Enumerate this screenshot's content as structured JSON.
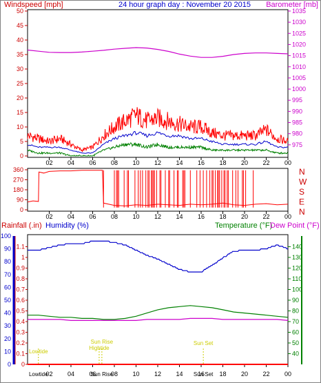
{
  "header": {
    "left_title": "Windspeed [mph]",
    "center_title": "24 hour graph day : November 20 2015",
    "right_title": "Barometer [mb]"
  },
  "colors": {
    "wind": "#ff0000",
    "wind_avg": "#0000cc",
    "wind_low": "#008000",
    "baro": "#cc00cc",
    "dir": "#ff0000",
    "humidity": "#0000cc",
    "temperature": "#008000",
    "dew": "#cc00cc",
    "rain": "#ff0000",
    "tide": "#cccc00",
    "humidity_label": "#0000cc",
    "temperature_label": "#008000",
    "dew_label": "#cc00cc",
    "rain_label": "#cc0000"
  },
  "chart_data": [
    {
      "type": "line",
      "title": "24 hour graph day : November 20 2015",
      "ylabel": "Windspeed [mph]",
      "y2label": "Barometer [mb]",
      "ylim": [
        0,
        50
      ],
      "y2lim": [
        970,
        1035
      ],
      "xlim": [
        0,
        24
      ],
      "x_tick_labels": [
        "02",
        "04",
        "06",
        "08",
        "10",
        "12",
        "14",
        "16",
        "18",
        "20",
        "22",
        "00"
      ],
      "y_ticks": [
        0,
        5,
        10,
        15,
        20,
        25,
        30,
        35,
        40,
        45,
        50
      ],
      "y2_ticks": [
        975,
        980,
        985,
        990,
        995,
        1000,
        1005,
        1010,
        1015,
        1020,
        1025,
        1030,
        1035
      ],
      "series": [
        {
          "key": "barometer",
          "axis": "right",
          "x": [
            0,
            1,
            2,
            3,
            4,
            5,
            6,
            7,
            8,
            9,
            10,
            11,
            12,
            13,
            14,
            15,
            16,
            17,
            18,
            19,
            20,
            21,
            22,
            23,
            24
          ],
          "y": [
            1017.5,
            1017.0,
            1016.5,
            1016.4,
            1016.4,
            1016.6,
            1017.0,
            1017.4,
            1017.9,
            1018.3,
            1018.6,
            1018.4,
            1017.8,
            1016.9,
            1015.7,
            1014.8,
            1014.2,
            1014.2,
            1014.7,
            1015.5,
            1016.0,
            1016.2,
            1016.2,
            1016.0,
            1015.8
          ]
        },
        {
          "key": "wind_max",
          "axis": "left",
          "x": [
            0,
            1,
            2,
            3,
            4,
            5,
            6,
            7,
            8,
            9,
            10,
            11,
            12,
            13,
            14,
            15,
            16,
            17,
            18,
            19,
            20,
            21,
            22,
            23,
            24
          ],
          "y": [
            7,
            6,
            5,
            6,
            4,
            2,
            3,
            7,
            10,
            12,
            14,
            12,
            13,
            12,
            11,
            10,
            10,
            8,
            7,
            7,
            7,
            7,
            9,
            6,
            5
          ]
        },
        {
          "key": "wind_avg",
          "axis": "left",
          "x": [
            0,
            1,
            2,
            3,
            4,
            5,
            6,
            7,
            8,
            9,
            10,
            11,
            12,
            13,
            14,
            15,
            16,
            17,
            18,
            19,
            20,
            21,
            22,
            23,
            24
          ],
          "y": [
            4,
            3,
            3,
            3,
            2,
            1,
            1,
            4,
            6,
            7,
            8,
            7,
            8,
            7,
            7,
            6,
            6,
            5,
            4,
            4,
            4,
            4,
            5,
            3,
            3
          ]
        },
        {
          "key": "wind_low",
          "axis": "left",
          "x": [
            0,
            1,
            2,
            3,
            4,
            5,
            6,
            7,
            8,
            9,
            10,
            11,
            12,
            13,
            14,
            15,
            16,
            17,
            18,
            19,
            20,
            21,
            22,
            23,
            24
          ],
          "y": [
            2,
            1,
            1,
            1,
            0,
            0,
            0,
            2,
            3,
            4,
            4,
            3,
            4,
            3,
            3,
            3,
            3,
            2,
            2,
            2,
            2,
            2,
            2,
            1,
            1
          ]
        }
      ]
    },
    {
      "type": "line",
      "ylim": [
        0,
        360
      ],
      "y_ticks": [
        0,
        90,
        180,
        270,
        360
      ],
      "compass_labels": [
        "N",
        "W",
        "S",
        "E",
        "N"
      ],
      "xlim": [
        0,
        24
      ],
      "x_tick_labels": [
        "02",
        "04",
        "06",
        "08",
        "10",
        "12",
        "14",
        "16",
        "18",
        "20",
        "22",
        "00"
      ],
      "series": [
        {
          "key": "wind_direction",
          "x": [
            0,
            0.5,
            1.0,
            1.05,
            1.5,
            2.0,
            3.0,
            4.0,
            5.0,
            6.0,
            6.9,
            7.0,
            8.0,
            9.0,
            10.0,
            11.0,
            12.0,
            13.0,
            14.0,
            15.0,
            16.0,
            17.0,
            18.0,
            19.0,
            20.0,
            21.0,
            22.0,
            23.0,
            24.0
          ],
          "y": [
            70,
            80,
            75,
            340,
            330,
            345,
            350,
            350,
            355,
            355,
            355,
            60,
            40,
            35,
            45,
            40,
            50,
            45,
            40,
            50,
            45,
            50,
            60,
            45,
            40,
            50,
            55,
            45,
            50
          ]
        }
      ]
    },
    {
      "type": "line",
      "ylabel": "Rainfall (.in)",
      "ylabel2": "Humidity (%)",
      "y2label": "Temperature (°F)",
      "y2label2": "Dew Point (°F)",
      "humidity_ylim": [
        0,
        100
      ],
      "rain_ylim": [
        0,
        1.2
      ],
      "temp_ylim": [
        30,
        150
      ],
      "humidity_ticks": [
        0,
        10,
        20,
        30,
        40,
        50,
        60,
        70,
        80,
        90,
        100
      ],
      "rain_ticks": [
        0,
        0.1,
        0.2,
        0.3,
        0.4,
        0.5,
        0.6,
        0.7,
        0.8,
        0.9,
        1,
        1.1
      ],
      "rain_tick_labels": [
        "0",
        "0.1",
        "0.2",
        "0.3",
        "0.4",
        "0.5",
        "0.6",
        "0.7",
        "0.8",
        "0.9",
        "1",
        "1.1"
      ],
      "temp_ticks": [
        40,
        50,
        60,
        70,
        80,
        90,
        100,
        110,
        120,
        130,
        140
      ],
      "xlim": [
        0,
        24
      ],
      "x_tick_labels": [
        "02",
        "04",
        "06",
        "08",
        "10",
        "12",
        "14",
        "16",
        "18",
        "20",
        "22",
        "00"
      ],
      "events": [
        {
          "label": "Lowtide",
          "x": 1.0
        },
        {
          "label": "Sun Rise",
          "x": 6.85
        },
        {
          "label": "Hightide",
          "x": 6.6
        },
        {
          "label": "Sun Set",
          "x": 16.2
        }
      ],
      "bottom_labels": [
        "Lowtide",
        "Sun Rise",
        "Sun Set"
      ],
      "series": [
        {
          "key": "humidity",
          "x": [
            0,
            1,
            2,
            3,
            4,
            5,
            6,
            7,
            8,
            9,
            10,
            11,
            12,
            13,
            14,
            15,
            16,
            17,
            18,
            19,
            20,
            21,
            22,
            23,
            24
          ],
          "y": [
            89,
            89,
            91,
            93,
            94,
            94,
            96,
            96,
            95,
            93,
            89,
            85,
            82,
            78,
            74,
            72,
            72,
            77,
            83,
            88,
            89,
            89,
            90,
            93,
            90
          ]
        },
        {
          "key": "temperature",
          "x": [
            0,
            1,
            2,
            3,
            4,
            5,
            6,
            7,
            8,
            9,
            10,
            11,
            12,
            13,
            14,
            15,
            16,
            17,
            18,
            19,
            20,
            21,
            22,
            23,
            24
          ],
          "y": [
            76,
            76,
            75,
            74,
            74,
            73,
            73,
            72,
            72,
            73,
            75,
            78,
            81,
            83,
            84,
            85,
            84,
            83,
            81,
            79,
            78,
            77,
            76,
            75,
            74
          ]
        },
        {
          "key": "dew_point",
          "x": [
            0,
            1,
            2,
            3,
            4,
            5,
            6,
            7,
            8,
            9,
            10,
            11,
            12,
            13,
            14,
            15,
            16,
            17,
            18,
            19,
            20,
            21,
            22,
            23,
            24
          ],
          "y": [
            72,
            72,
            72,
            72,
            71,
            71,
            71,
            71,
            71,
            71,
            71,
            72,
            72,
            72,
            72,
            73,
            73,
            73,
            72,
            72,
            72,
            72,
            72,
            72,
            71
          ]
        },
        {
          "key": "rainfall",
          "x": [
            0,
            24
          ],
          "y": [
            0,
            0
          ]
        }
      ]
    }
  ]
}
